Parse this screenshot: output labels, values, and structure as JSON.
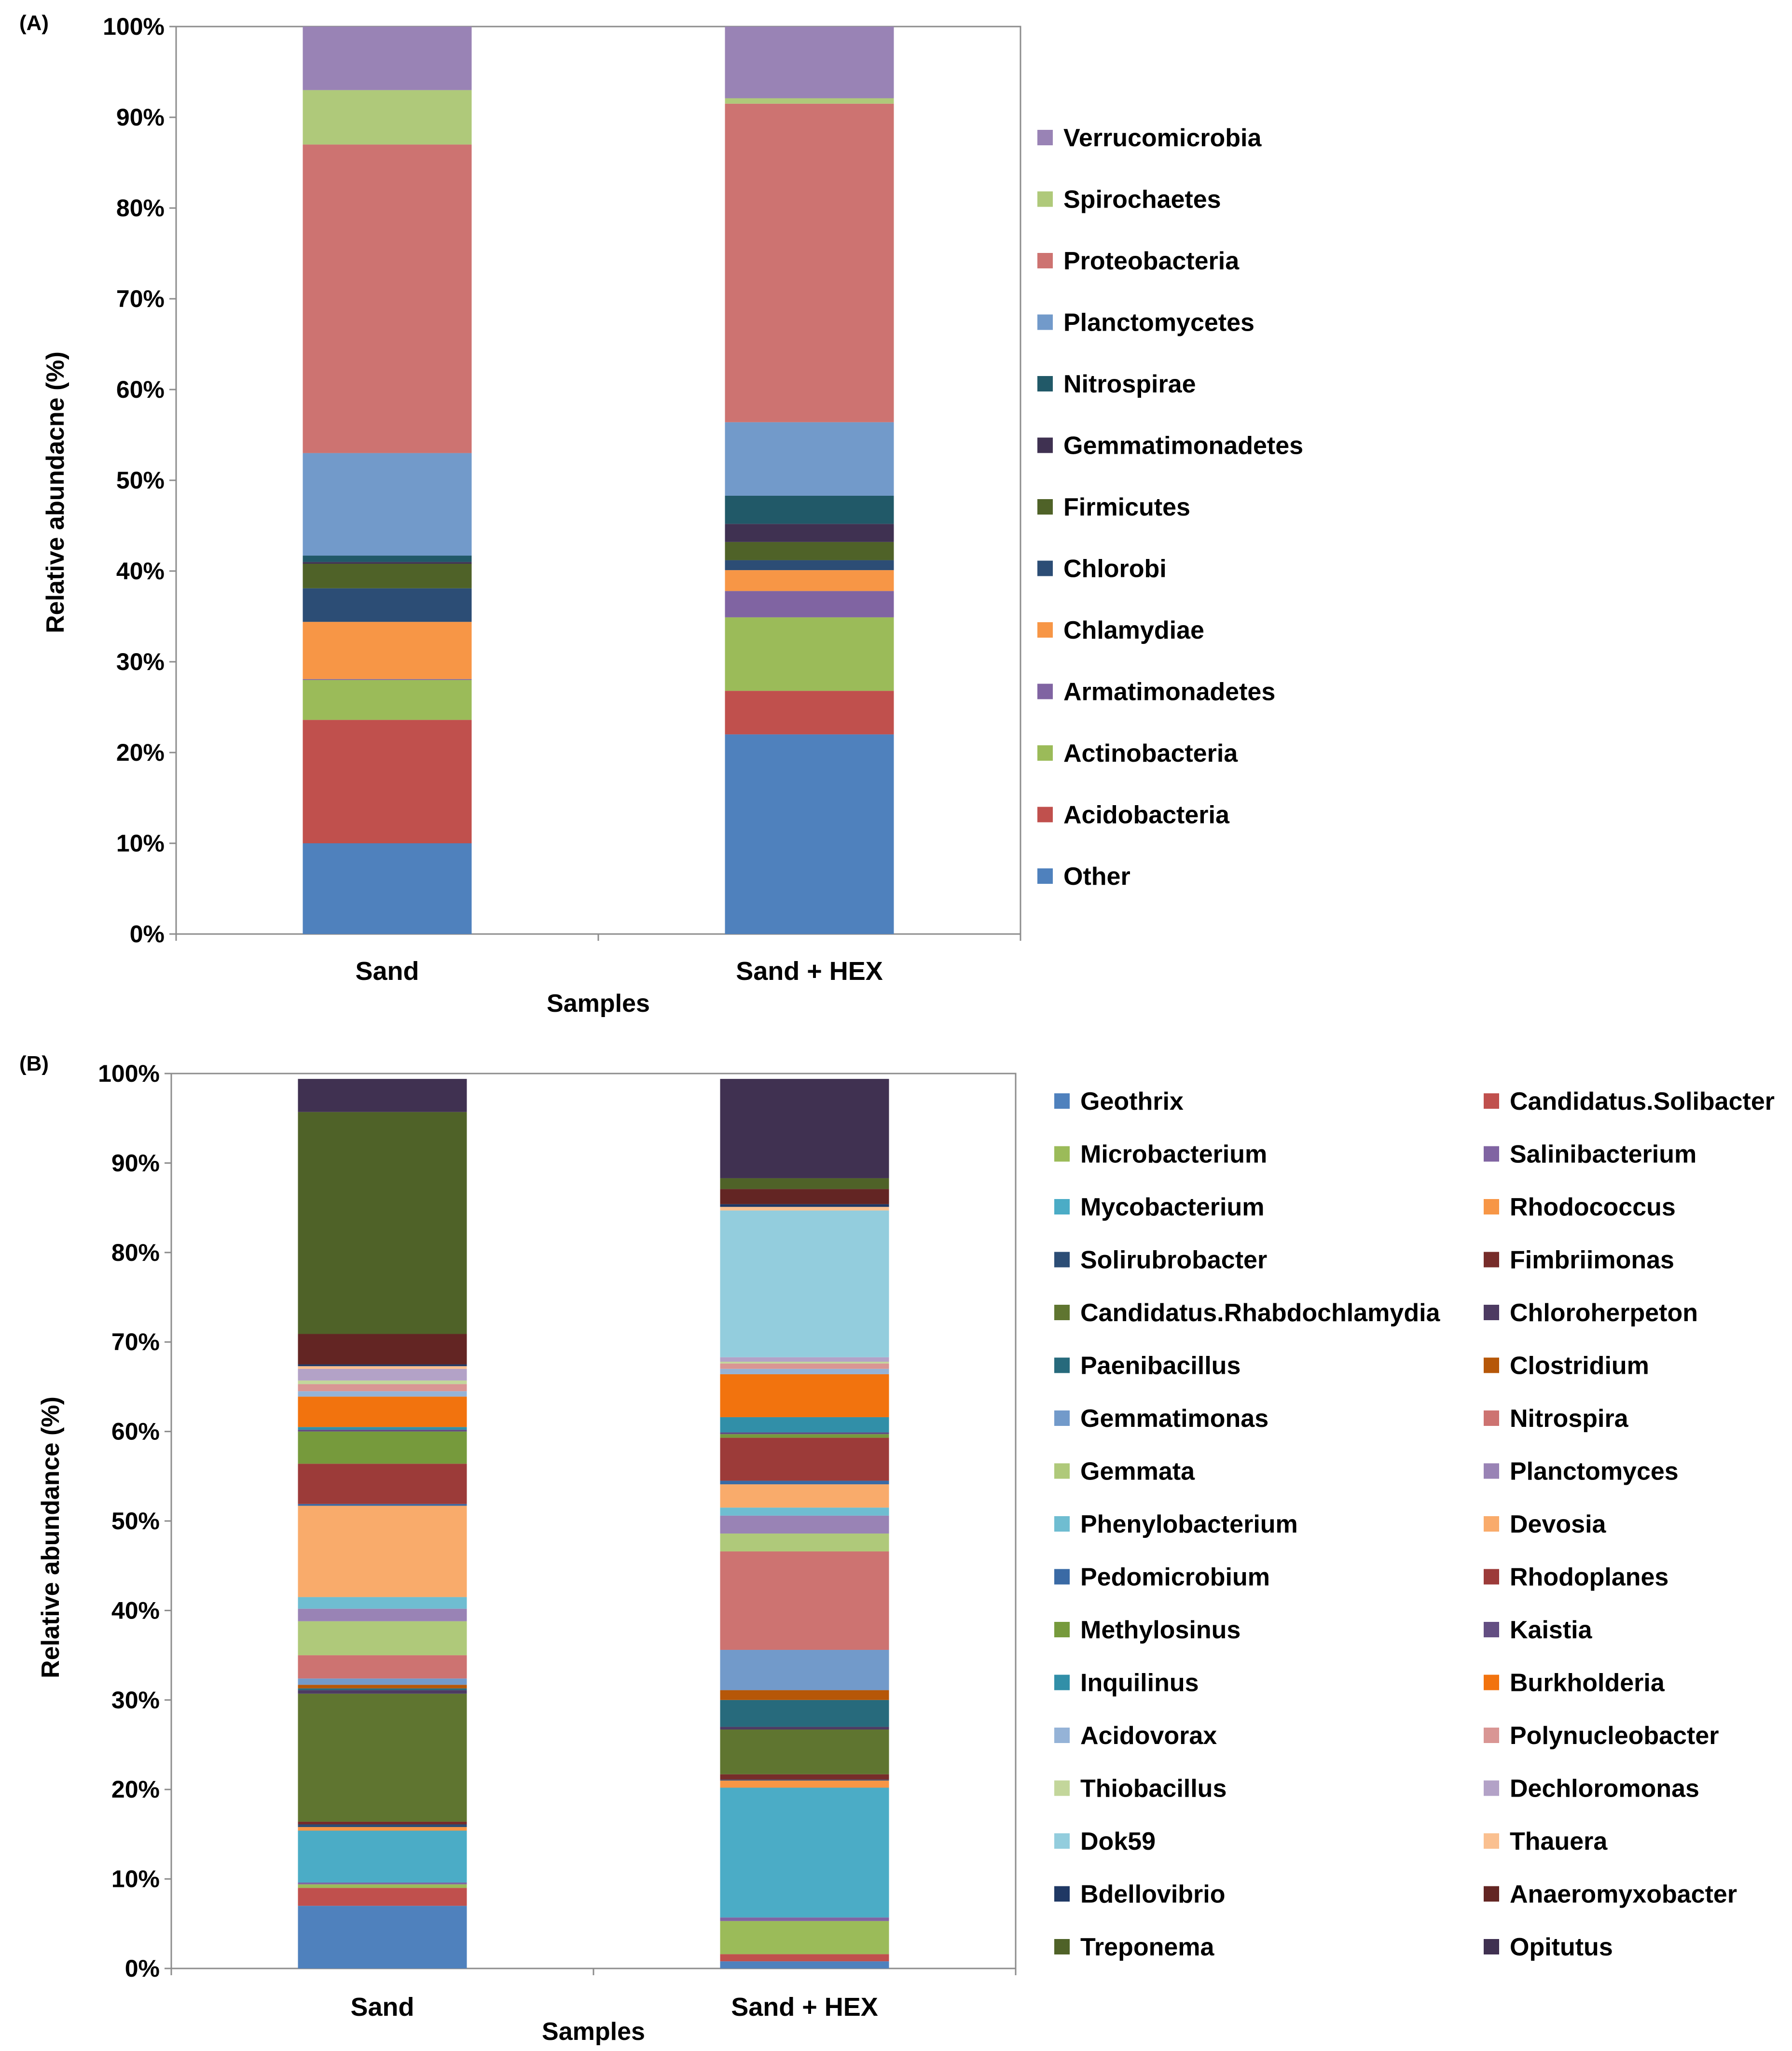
{
  "chart_data": [
    {
      "type": "bar",
      "stacked": true,
      "panel_label": "(A)",
      "categories": [
        "Sand",
        "Sand + HEX"
      ],
      "xlabel": "Samples",
      "ylabel": "Relative abundacne (%)",
      "ylim": [
        0,
        100
      ],
      "yticks": [
        "0%",
        "10%",
        "20%",
        "30%",
        "40%",
        "50%",
        "60%",
        "70%",
        "80%",
        "90%",
        "100%"
      ],
      "legend_position": "right",
      "series": [
        {
          "name": "Other",
          "color": "#4f81bd",
          "values": [
            10.0,
            22.0
          ]
        },
        {
          "name": "Acidobacteria",
          "color": "#c0504d",
          "values": [
            13.6,
            4.8
          ]
        },
        {
          "name": "Actinobacteria",
          "color": "#9bbb59",
          "values": [
            4.4,
            8.1
          ]
        },
        {
          "name": "Armatimonadetes",
          "color": "#8064a2",
          "values": [
            0.1,
            2.9
          ]
        },
        {
          "name": "Chlamydiae",
          "color": "#f79646",
          "values": [
            6.3,
            2.3
          ]
        },
        {
          "name": "Chlorobi",
          "color": "#2c4d75",
          "values": [
            3.7,
            1.1
          ]
        },
        {
          "name": "Firmicutes",
          "color": "#4f6228",
          "values": [
            2.7,
            2.0
          ]
        },
        {
          "name": "Gemmatimonadetes",
          "color": "#3f3151",
          "values": [
            0.2,
            2.0
          ]
        },
        {
          "name": "Nitrospirae",
          "color": "#215968",
          "values": [
            0.7,
            3.1
          ]
        },
        {
          "name": "Planctomycetes",
          "color": "#729aca",
          "values": [
            11.3,
            8.1
          ]
        },
        {
          "name": "Proteobacteria",
          "color": "#cd7371",
          "values": [
            34.0,
            35.1
          ]
        },
        {
          "name": "Spirochaetes",
          "color": "#afc97a",
          "values": [
            6.0,
            0.6
          ]
        },
        {
          "name": "Verrucomicrobia",
          "color": "#9983b5",
          "values": [
            7.0,
            7.9
          ]
        }
      ]
    },
    {
      "type": "bar",
      "stacked": true,
      "panel_label": "(B)",
      "categories": [
        "Sand",
        "Sand + HEX"
      ],
      "xlabel": "Samples",
      "ylabel": "Relative abundance (%)",
      "ylim": [
        0,
        100
      ],
      "yticks": [
        "0%",
        "10%",
        "20%",
        "30%",
        "40%",
        "50%",
        "60%",
        "70%",
        "80%",
        "90%",
        "100%"
      ],
      "legend_position": "right",
      "series": [
        {
          "name": "Geothrix",
          "color": "#4f81bd",
          "values": [
            7.0,
            0.8
          ]
        },
        {
          "name": "Candidatus.Solibacter",
          "color": "#c0504d",
          "values": [
            2.0,
            0.8
          ]
        },
        {
          "name": "Microbacterium",
          "color": "#9bbb59",
          "values": [
            0.4,
            3.7
          ]
        },
        {
          "name": "Salinibacterium",
          "color": "#8064a2",
          "values": [
            0.2,
            0.4
          ]
        },
        {
          "name": "Mycobacterium",
          "color": "#4bacc6",
          "values": [
            5.8,
            14.5
          ]
        },
        {
          "name": "Rhodococcus",
          "color": "#f79646",
          "values": [
            0.4,
            0.8
          ]
        },
        {
          "name": "Solirubrobacter",
          "color": "#2c4d75",
          "values": [
            0.3,
            0.1
          ]
        },
        {
          "name": "Fimbriimonas",
          "color": "#772c2a",
          "values": [
            0.3,
            0.6
          ]
        },
        {
          "name": "Candidatus.Rhabdochlamydia",
          "color": "#5f7530",
          "values": [
            14.3,
            5.0
          ]
        },
        {
          "name": "Chloroherpeton",
          "color": "#4d3b62",
          "values": [
            0.4,
            0.3
          ]
        },
        {
          "name": "Paenibacillus",
          "color": "#276a7c",
          "values": [
            0.2,
            3.0
          ]
        },
        {
          "name": "Clostridium",
          "color": "#b65708",
          "values": [
            0.4,
            1.1
          ]
        },
        {
          "name": "Gemmatimonas",
          "color": "#729aca",
          "values": [
            0.7,
            4.5
          ]
        },
        {
          "name": "Nitrospira",
          "color": "#cd7371",
          "values": [
            2.6,
            11.0
          ]
        },
        {
          "name": "Gemmata",
          "color": "#afc97a",
          "values": [
            3.8,
            2.0
          ]
        },
        {
          "name": "Planctomyces",
          "color": "#9983b5",
          "values": [
            1.4,
            2.0
          ]
        },
        {
          "name": "Phenylobacterium",
          "color": "#6fbdd1",
          "values": [
            1.3,
            0.9
          ]
        },
        {
          "name": "Devosia",
          "color": "#f9ab6b",
          "values": [
            10.2,
            2.6
          ]
        },
        {
          "name": "Pedomicrobium",
          "color": "#3a6aa5",
          "values": [
            0.2,
            0.4
          ]
        },
        {
          "name": "Rhodoplanes",
          "color": "#9c3b39",
          "values": [
            4.5,
            4.8
          ]
        },
        {
          "name": "Methylosinus",
          "color": "#769a3c",
          "values": [
            3.6,
            0.4
          ]
        },
        {
          "name": "Kaistia",
          "color": "#634e82",
          "values": [
            0.2,
            0.2
          ]
        },
        {
          "name": "Inquilinus",
          "color": "#318fa8",
          "values": [
            0.3,
            1.7
          ]
        },
        {
          "name": "Burkholderia",
          "color": "#f2730e",
          "values": [
            3.4,
            4.8
          ]
        },
        {
          "name": "Acidovorax",
          "color": "#95b3d7",
          "values": [
            0.6,
            0.6
          ]
        },
        {
          "name": "Polynucleobacter",
          "color": "#d99694",
          "values": [
            0.8,
            0.6
          ]
        },
        {
          "name": "Thiobacillus",
          "color": "#c3d69b",
          "values": [
            0.4,
            0.2
          ]
        },
        {
          "name": "Dechloromonas",
          "color": "#b3a2c7",
          "values": [
            1.3,
            0.5
          ]
        },
        {
          "name": "Dok59",
          "color": "#93cddd",
          "values": [
            0.0,
            16.4
          ]
        },
        {
          "name": "Thauera",
          "color": "#fac090",
          "values": [
            0.3,
            0.4
          ]
        },
        {
          "name": "Bdellovibrio",
          "color": "#1f3864",
          "values": [
            0.2,
            0.3
          ]
        },
        {
          "name": "Anaeromyxobacter",
          "color": "#632523",
          "values": [
            3.4,
            1.7
          ]
        },
        {
          "name": "Treponema",
          "color": "#4f6228",
          "values": [
            24.8,
            1.2
          ]
        },
        {
          "name": "Opitutus",
          "color": "#403151",
          "values": [
            3.7,
            11.1
          ]
        }
      ]
    }
  ]
}
